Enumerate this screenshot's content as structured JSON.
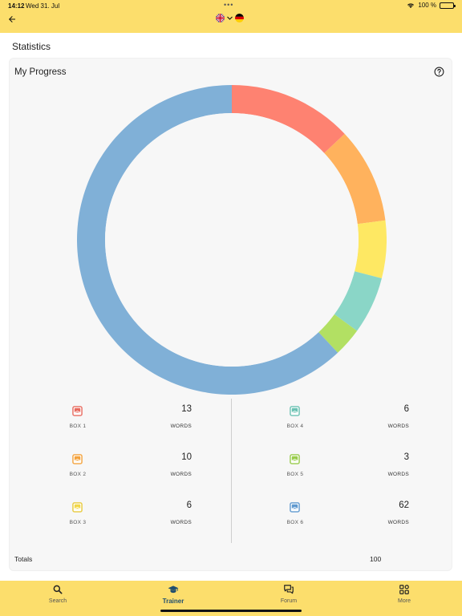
{
  "status_bar": {
    "time": "14:12",
    "date": "Wed 31. Jul",
    "dots": "•••",
    "battery_text": "100 %"
  },
  "header": {
    "back_icon": "arrow-left-icon",
    "source_flag": "uk-flag-icon",
    "target_flag": "de-flag-icon"
  },
  "page": {
    "title": "Statistics"
  },
  "card": {
    "title": "My Progress",
    "help_icon": "question-circle-icon"
  },
  "chart_data": {
    "type": "pie",
    "title": "",
    "donut": true,
    "categories": [
      "BOX 1",
      "BOX 2",
      "BOX 3",
      "BOX 4",
      "BOX 5",
      "BOX 6"
    ],
    "values": [
      13,
      10,
      6,
      6,
      3,
      62
    ],
    "colors": [
      "#fe8271",
      "#ffb25d",
      "#fee863",
      "#8ad6c7",
      "#b2e063",
      "#80b0d7"
    ]
  },
  "boxes": [
    {
      "label": "BOX 1",
      "count": "13",
      "unit": "WORDS",
      "color": "#e86b5f"
    },
    {
      "label": "BOX 2",
      "count": "10",
      "unit": "WORDS",
      "color": "#f4a23c"
    },
    {
      "label": "BOX 3",
      "count": "6",
      "unit": "WORDS",
      "color": "#f2d84a"
    },
    {
      "label": "BOX 4",
      "count": "6",
      "unit": "WORDS",
      "color": "#6cc2b3"
    },
    {
      "label": "BOX 5",
      "count": "3",
      "unit": "WORDS",
      "color": "#98cb4a"
    },
    {
      "label": "BOX 6",
      "count": "62",
      "unit": "WORDS",
      "color": "#5f99cf"
    }
  ],
  "totals": {
    "label": "Totals",
    "value": "100"
  },
  "tabs": [
    {
      "label": "Search",
      "icon": "search-icon",
      "active": false
    },
    {
      "label": "Trainer",
      "icon": "graduation-cap-icon",
      "active": true
    },
    {
      "label": "Forum",
      "icon": "chat-bubbles-icon",
      "active": false
    },
    {
      "label": "More",
      "icon": "grid-icon",
      "active": false
    }
  ]
}
